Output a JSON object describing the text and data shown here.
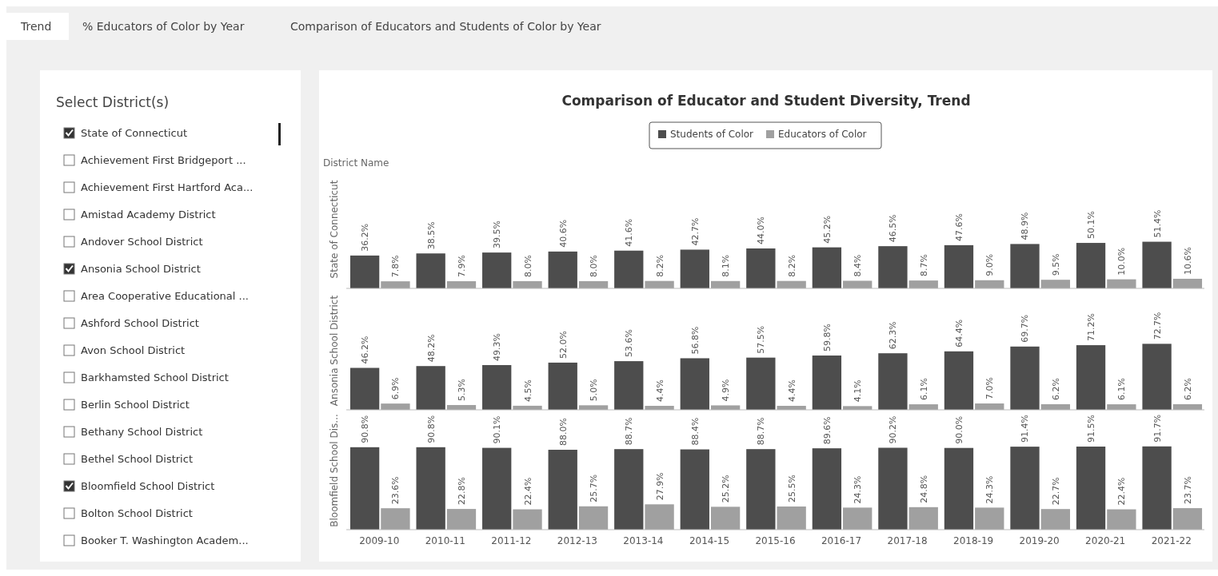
{
  "chart_data": [
    {
      "type": "other",
      "annotations": [
        "Trend",
        "% Educators of Color by Year",
        "Comparison of Educators and Students of Color by Year"
      ]
    },
    {
      "type": "other",
      "title": "Select District(s)",
      "categories": [
        "State of Connecticut",
        "Achievement First Bridgeport ...",
        "Achievement First Hartford Aca...",
        "Amistad Academy District",
        "Andover School District",
        "Ansonia School District",
        "Area Cooperative Educational ...",
        "Ashford School District",
        "Avon School District",
        "Barkhamsted School District",
        "Berlin School District",
        "Bethany School District",
        "Bethel School District",
        "Bloomfield School District",
        "Bolton School District",
        "Booker T. Washington Academ..."
      ],
      "values": [
        true,
        false,
        false,
        false,
        false,
        true,
        false,
        false,
        false,
        false,
        false,
        false,
        false,
        true,
        false,
        false
      ]
    },
    {
      "type": "bar",
      "title": "Comparison of Educator and Student Diversity, Trend",
      "annotations": [
        "District Name"
      ],
      "ylabel": "State of Connecticut",
      "legend": "top",
      "tick_labels": false,
      "categories": [
        "2009-10",
        "2010-11",
        "2011-12",
        "2012-13",
        "2013-14",
        "2014-15",
        "2015-16",
        "2016-17",
        "2017-18",
        "2018-19",
        "2019-20",
        "2020-21",
        "2021-22"
      ],
      "series": [
        {
          "name": "Students of Color",
          "color": "#4d4d4d",
          "values": [
            36.2,
            38.5,
            39.5,
            40.6,
            41.6,
            42.7,
            44.0,
            45.2,
            46.5,
            47.6,
            48.9,
            50.1,
            51.4
          ],
          "value_labels": [
            "36.2%",
            "38.5%",
            "39.5%",
            "40.6%",
            "41.6%",
            "42.7%",
            "44.0%",
            "45.2%",
            "46.5%",
            "47.6%",
            "48.9%",
            "50.1%",
            "51.4%"
          ]
        },
        {
          "name": "Educators of Color",
          "color": "#a0a0a0",
          "values": [
            7.8,
            7.9,
            8.0,
            8.0,
            8.2,
            8.1,
            8.2,
            8.4,
            8.7,
            9.0,
            9.5,
            10.0,
            10.6
          ],
          "value_labels": [
            "7.8%",
            "7.9%",
            "8.0%",
            "8.0%",
            "8.2%",
            "8.1%",
            "8.2%",
            "8.4%",
            "8.7%",
            "9.0%",
            "9.5%",
            "10.0%",
            "10.6%"
          ]
        }
      ]
    },
    {
      "type": "bar",
      "ylabel": "Ansonia School District",
      "tick_labels": false,
      "categories": [
        "2009-10",
        "2010-11",
        "2011-12",
        "2012-13",
        "2013-14",
        "2014-15",
        "2015-16",
        "2016-17",
        "2017-18",
        "2018-19",
        "2019-20",
        "2020-21",
        "2021-22"
      ],
      "series": [
        {
          "color": "#4d4d4d",
          "values": [
            46.2,
            48.2,
            49.3,
            52.0,
            53.6,
            56.8,
            57.5,
            59.8,
            62.3,
            64.4,
            69.7,
            71.2,
            72.7
          ],
          "value_labels": [
            "46.2%",
            "48.2%",
            "49.3%",
            "52.0%",
            "53.6%",
            "56.8%",
            "57.5%",
            "59.8%",
            "62.3%",
            "64.4%",
            "69.7%",
            "71.2%",
            "72.7%"
          ]
        },
        {
          "color": "#a0a0a0",
          "values": [
            6.9,
            5.3,
            4.5,
            5.0,
            4.4,
            4.9,
            4.4,
            4.1,
            6.1,
            7.0,
            6.2,
            6.1,
            6.2
          ],
          "value_labels": [
            "6.9%",
            "5.3%",
            "4.5%",
            "5.0%",
            "4.4%",
            "4.9%",
            "4.4%",
            "4.1%",
            "6.1%",
            "7.0%",
            "6.2%",
            "6.1%",
            "6.2%"
          ]
        }
      ]
    },
    {
      "type": "bar",
      "ylabel": "Bloomfield School Dis...",
      "tick_labels": "x",
      "categories": [
        "2009-10",
        "2010-11",
        "2011-12",
        "2012-13",
        "2013-14",
        "2014-15",
        "2015-16",
        "2016-17",
        "2017-18",
        "2018-19",
        "2019-20",
        "2020-21",
        "2021-22"
      ],
      "series": [
        {
          "color": "#4d4d4d",
          "values": [
            90.8,
            90.8,
            90.1,
            88.0,
            88.7,
            88.4,
            88.7,
            89.6,
            90.2,
            90.0,
            91.4,
            91.5,
            91.7
          ],
          "value_labels": [
            "90.8%",
            "90.8%",
            "90.1%",
            "88.0%",
            "88.7%",
            "88.4%",
            "88.7%",
            "89.6%",
            "90.2%",
            "90.0%",
            "91.4%",
            "91.5%",
            "91.7%"
          ]
        },
        {
          "color": "#a0a0a0",
          "values": [
            23.6,
            22.8,
            22.4,
            25.7,
            27.9,
            25.2,
            25.5,
            24.3,
            24.8,
            24.3,
            22.7,
            22.4,
            23.7
          ],
          "value_labels": [
            "23.6%",
            "22.8%",
            "22.4%",
            "25.7%",
            "27.9%",
            "25.2%",
            "25.5%",
            "24.3%",
            "24.8%",
            "24.3%",
            "22.7%",
            "22.4%",
            "23.7%"
          ]
        }
      ]
    }
  ]
}
